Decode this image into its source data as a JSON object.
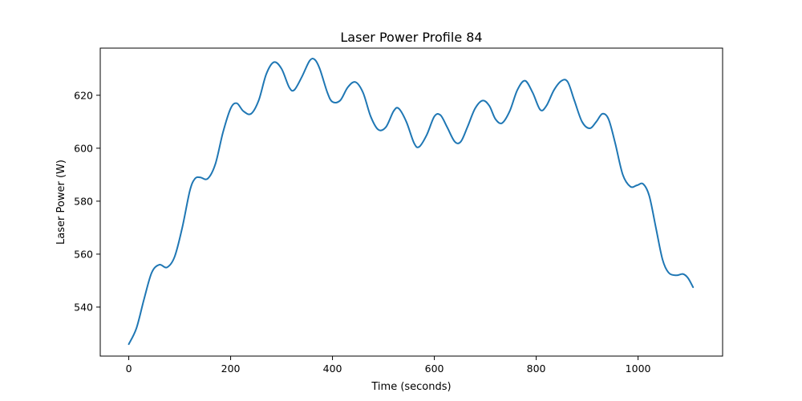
{
  "chart_data": {
    "type": "line",
    "title": "Laser Power Profile 84",
    "xlabel": "Time (seconds)",
    "ylabel": "Laser Power (W)",
    "xlim": [
      -56,
      1166
    ],
    "ylim": [
      521.5,
      637.8
    ],
    "xticks": [
      0,
      200,
      400,
      600,
      800,
      1000
    ],
    "yticks": [
      540,
      560,
      580,
      600,
      620
    ],
    "grid": false,
    "legend": "none",
    "series": [
      {
        "color": "#1f77b4",
        "points": [
          [
            0,
            526
          ],
          [
            15,
            532
          ],
          [
            30,
            543
          ],
          [
            45,
            553
          ],
          [
            60,
            556
          ],
          [
            75,
            555
          ],
          [
            90,
            559
          ],
          [
            105,
            570
          ],
          [
            120,
            584
          ],
          [
            130,
            588.5
          ],
          [
            140,
            589
          ],
          [
            155,
            588.5
          ],
          [
            170,
            594
          ],
          [
            185,
            606
          ],
          [
            200,
            615
          ],
          [
            212,
            617
          ],
          [
            225,
            614
          ],
          [
            240,
            613
          ],
          [
            255,
            618
          ],
          [
            270,
            628
          ],
          [
            285,
            632.5
          ],
          [
            300,
            630
          ],
          [
            315,
            623
          ],
          [
            325,
            622
          ],
          [
            340,
            627
          ],
          [
            355,
            633
          ],
          [
            365,
            633.5
          ],
          [
            375,
            630
          ],
          [
            390,
            621
          ],
          [
            400,
            617.5
          ],
          [
            415,
            618
          ],
          [
            430,
            623
          ],
          [
            445,
            625
          ],
          [
            460,
            621
          ],
          [
            475,
            612
          ],
          [
            490,
            607
          ],
          [
            505,
            608
          ],
          [
            520,
            614
          ],
          [
            530,
            615
          ],
          [
            545,
            610
          ],
          [
            560,
            602
          ],
          [
            570,
            600.5
          ],
          [
            585,
            605
          ],
          [
            600,
            612
          ],
          [
            612,
            612.5
          ],
          [
            625,
            608
          ],
          [
            640,
            602.5
          ],
          [
            652,
            602.5
          ],
          [
            665,
            608
          ],
          [
            680,
            615
          ],
          [
            695,
            618
          ],
          [
            708,
            616
          ],
          [
            720,
            611
          ],
          [
            733,
            609.5
          ],
          [
            748,
            614
          ],
          [
            763,
            622
          ],
          [
            778,
            625.5
          ],
          [
            793,
            621
          ],
          [
            808,
            614.5
          ],
          [
            820,
            616
          ],
          [
            835,
            622
          ],
          [
            850,
            625.5
          ],
          [
            862,
            625
          ],
          [
            875,
            618
          ],
          [
            890,
            610
          ],
          [
            905,
            607.5
          ],
          [
            918,
            610
          ],
          [
            930,
            613
          ],
          [
            942,
            611
          ],
          [
            955,
            602
          ],
          [
            970,
            590
          ],
          [
            985,
            585.5
          ],
          [
            998,
            586
          ],
          [
            1010,
            586.5
          ],
          [
            1022,
            582
          ],
          [
            1035,
            570
          ],
          [
            1048,
            558
          ],
          [
            1060,
            553
          ],
          [
            1075,
            552
          ],
          [
            1088,
            552.5
          ],
          [
            1098,
            551
          ],
          [
            1108,
            547.5
          ]
        ]
      }
    ]
  }
}
